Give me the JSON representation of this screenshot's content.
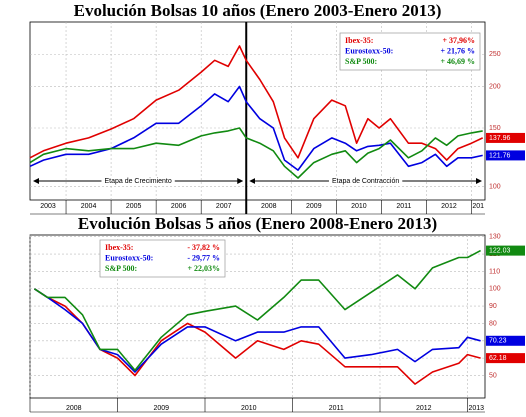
{
  "chart_data": [
    {
      "type": "line",
      "title": "Evolución Bolsas 10 años (Enero 2003-Enero 2013)",
      "log_scale": true,
      "grid": true,
      "legend": "top-right",
      "x": [
        2003.2,
        2003.5,
        2004,
        2004.5,
        2005,
        2005.5,
        2006,
        2006.5,
        2007,
        2007.3,
        2007.6,
        2007.85,
        2008,
        2008.3,
        2008.6,
        2008.85,
        2009.15,
        2009.5,
        2009.9,
        2010.2,
        2010.45,
        2010.7,
        2010.95,
        2011.2,
        2011.6,
        2011.9,
        2012.2,
        2012.45,
        2012.7,
        2013.0,
        2013.25
      ],
      "xlim": [
        2003.2,
        2013.3
      ],
      "xticks": [
        2003,
        2004,
        2005,
        2006,
        2007,
        2008,
        2009,
        2010,
        2011,
        2012,
        {
          "value": 2013,
          "label": "201"
        }
      ],
      "ylim": [
        91,
        313
      ],
      "yticks": [
        100,
        150,
        200,
        250
      ],
      "divider": 2008,
      "phases": [
        "Etapa de Crecimiento",
        "Etapa de Contracción"
      ],
      "series": [
        {
          "name": "Ibex-35:",
          "change": "+ 37,96%",
          "color": "#e00000",
          "end_label": "137.96",
          "values": [
            122,
            128,
            135,
            140,
            149,
            160,
            182,
            195,
            221,
            240,
            230,
            265,
            240,
            210,
            180,
            140,
            122,
            160,
            182,
            175,
            135,
            160,
            150,
            160,
            135,
            135,
            130,
            120,
            130,
            135,
            140
          ]
        },
        {
          "name": "Eurostoxx-50:",
          "change": "+ 21,76 %",
          "color": "#0000e0",
          "end_label": "121.76",
          "values": [
            115,
            120,
            125,
            125,
            130,
            140,
            155,
            155,
            175,
            190,
            180,
            200,
            180,
            160,
            150,
            120,
            112,
            130,
            140,
            135,
            128,
            132,
            133,
            135,
            115,
            118,
            125,
            115,
            122,
            122,
            124
          ]
        },
        {
          "name": "S&P 500:",
          "change": "+ 46,69 %",
          "color": "#118a11",
          "values": [
            118,
            125,
            130,
            128,
            130,
            130,
            135,
            133,
            142,
            145,
            147,
            150,
            140,
            135,
            128,
            115,
            106,
            118,
            125,
            128,
            118,
            126,
            130,
            138,
            122,
            128,
            140,
            133,
            142,
            145,
            147
          ]
        }
      ]
    },
    {
      "type": "line",
      "title": "Evolución Bolsas 5 años (Enero 2008-Enero 2013)",
      "log_scale": false,
      "grid": true,
      "legend": "top-left",
      "x": [
        2008.05,
        2008.2,
        2008.4,
        2008.6,
        2008.8,
        2009.0,
        2009.2,
        2009.5,
        2009.8,
        2010.0,
        2010.35,
        2010.6,
        2010.9,
        2011.1,
        2011.3,
        2011.6,
        2011.9,
        2012.2,
        2012.4,
        2012.6,
        2012.9,
        2013.0,
        2013.15
      ],
      "xlim": [
        2008,
        2013.2
      ],
      "xticks": [
        2008,
        2009,
        2010,
        2011,
        2012,
        2013
      ],
      "ylim": [
        37,
        131
      ],
      "yticks": [
        50,
        60,
        70,
        80,
        90,
        100,
        110,
        120,
        130
      ],
      "series": [
        {
          "name": "Ibex-35:",
          "change": "- 37,82 %",
          "color": "#e00000",
          "end_label": "62.18",
          "values": [
            100,
            95,
            90,
            80,
            65,
            60,
            50,
            70,
            80,
            75,
            60,
            70,
            65,
            70,
            68,
            55,
            55,
            55,
            45,
            52,
            57,
            62,
            60
          ]
        },
        {
          "name": "Eurostoxx-50:",
          "change": "- 29,77 %",
          "color": "#0000e0",
          "end_label": "70.23",
          "values": [
            100,
            95,
            88,
            80,
            65,
            62,
            52,
            68,
            78,
            78,
            70,
            75,
            75,
            78,
            78,
            60,
            62,
            65,
            58,
            65,
            66,
            72,
            70
          ]
        },
        {
          "name": "S&P 500:",
          "change": "+ 22,03%",
          "color": "#118a11",
          "end_label": "122.03",
          "values": [
            100,
            95,
            95,
            85,
            65,
            65,
            53,
            72,
            85,
            87,
            90,
            82,
            95,
            105,
            105,
            88,
            98,
            108,
            100,
            112,
            118,
            118,
            122
          ]
        }
      ]
    }
  ]
}
